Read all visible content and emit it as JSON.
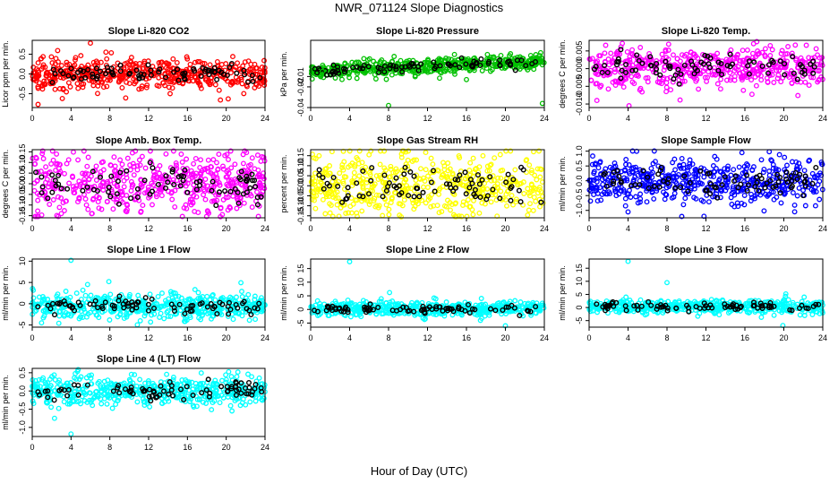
{
  "figure": {
    "title": "NWR_071124  Slope Diagnostics",
    "xlabel": "Hour of Day (UTC)"
  },
  "colors": {
    "red": "#ff0000",
    "green": "#00c000",
    "magenta": "#ff00ff",
    "yellow": "#ffff00",
    "blue": "#0000ff",
    "cyan": "#00ffff",
    "black": "#000000"
  },
  "chart_data": [
    {
      "type": "scatter",
      "title": "Slope Li-820 CO2",
      "ylabel": "Licor ppm per min.",
      "xlim": [
        0,
        24
      ],
      "ylim": [
        -0.85,
        0.85
      ],
      "x_ticks": [
        0,
        4,
        8,
        12,
        16,
        20,
        24
      ],
      "y_ticks": [
        -0.5,
        0.0,
        0.5
      ],
      "y_tick_labels": [
        "-0.5",
        "0.0",
        "0.5"
      ],
      "color": "#ff0000",
      "spread": 0.18,
      "bias": 0.0,
      "outliers": [
        [
          6.0,
          0.78
        ],
        [
          0.6,
          -0.77
        ],
        [
          3.1,
          -0.62
        ],
        [
          7.6,
          0.55
        ],
        [
          19.4,
          -0.66
        ]
      ]
    },
    {
      "type": "scatter",
      "title": "Slope Li-820 Pressure",
      "ylabel": "kPa per min.",
      "xlim": [
        0,
        24
      ],
      "ylim": [
        -0.04,
        0.025
      ],
      "x_ticks": [
        0,
        4,
        8,
        12,
        16,
        20,
        24
      ],
      "y_ticks": [
        -0.04,
        -0.02,
        -0.01
      ],
      "y_tick_labels": [
        "-0.04",
        "-0.02",
        "-0.01"
      ],
      "color": "#00c000",
      "spread": 0.004,
      "bias": 0.0,
      "trend": 0.0004,
      "outliers": [
        [
          8.0,
          -0.038
        ],
        [
          23.8,
          -0.036
        ],
        [
          16.0,
          -0.013
        ],
        [
          1.2,
          -0.005
        ]
      ]
    },
    {
      "type": "scatter",
      "title": "Slope Li-820 Temp.",
      "ylabel": "degrees C per min.",
      "xlim": [
        0,
        24
      ],
      "ylim": [
        -0.011,
        0.008
      ],
      "x_ticks": [
        0,
        4,
        8,
        12,
        16,
        20,
        24
      ],
      "y_ticks": [
        -0.01,
        -0.005,
        0.0,
        0.005
      ],
      "y_tick_labels": [
        "-0.010",
        "-0.005",
        "0.000",
        "0.005"
      ],
      "color": "#ff00ff",
      "spread": 0.0028,
      "bias": 0.0004,
      "outliers": [
        [
          4.1,
          -0.0105
        ],
        [
          18.6,
          0.0065
        ],
        [
          0.8,
          -0.009
        ]
      ]
    },
    {
      "type": "scatter",
      "title": "Slope Amb. Box Temp.",
      "ylabel": "degrees C per min.",
      "xlim": [
        0,
        24
      ],
      "ylim": [
        -0.16,
        0.16
      ],
      "x_ticks": [
        0,
        4,
        8,
        12,
        16,
        20,
        24
      ],
      "y_ticks": [
        -0.15,
        -0.1,
        -0.05,
        0.0,
        0.05,
        0.1,
        0.15
      ],
      "y_tick_labels": [
        "-0.15",
        "-0.10",
        "-0.05",
        "0.00",
        "0.05",
        "0.10",
        "0.15"
      ],
      "color": "#ff00ff",
      "spread": 0.07,
      "bias": 0.0,
      "outliers": [
        [
          19.4,
          -0.155
        ],
        [
          3.0,
          -0.14
        ]
      ]
    },
    {
      "type": "scatter",
      "title": "Slope Gas Stream RH",
      "ylabel": "percent per min.",
      "xlim": [
        0,
        24
      ],
      "ylim": [
        -0.16,
        0.18
      ],
      "x_ticks": [
        0,
        4,
        8,
        12,
        16,
        20,
        24
      ],
      "y_ticks": [
        -0.15,
        -0.1,
        -0.05,
        0.0,
        0.05,
        0.1,
        0.15
      ],
      "y_tick_labels": [
        "-0.15",
        "-0.10",
        "-0.05",
        "0.00",
        "0.05",
        "0.10",
        "0.15"
      ],
      "color": "#ffff00",
      "spread": 0.08,
      "bias": 0.0,
      "outliers": [
        [
          9.3,
          -0.155
        ],
        [
          2.2,
          0.17
        ]
      ]
    },
    {
      "type": "scatter",
      "title": "Slope Sample Flow",
      "ylabel": "ml/min per min.",
      "xlim": [
        0,
        24
      ],
      "ylim": [
        -1.25,
        1.05
      ],
      "x_ticks": [
        0,
        4,
        8,
        12,
        16,
        20,
        24
      ],
      "y_ticks": [
        -1.0,
        -0.5,
        0.0,
        0.5,
        1.0
      ],
      "y_tick_labels": [
        "-1.0",
        "-0.5",
        "0.0",
        "0.5",
        "1.0"
      ],
      "color": "#0000ff",
      "spread": 0.38,
      "bias": 0.0,
      "outliers": [
        [
          4.0,
          -1.05
        ],
        [
          11.8,
          -1.2
        ],
        [
          15.7,
          0.95
        ],
        [
          18.5,
          0.98
        ]
      ]
    },
    {
      "type": "scatter",
      "title": "Slope Line 1 Flow",
      "ylabel": "ml/min per min.",
      "xlim": [
        0,
        24
      ],
      "ylim": [
        -5.5,
        10.5
      ],
      "x_ticks": [
        0,
        4,
        8,
        12,
        16,
        20,
        24
      ],
      "y_ticks": [
        -5,
        0,
        5,
        10
      ],
      "y_tick_labels": [
        "-5",
        "0",
        "5",
        "10"
      ],
      "color": "#00ffff",
      "spread": 1.4,
      "bias": -0.6,
      "outliers": [
        [
          4.0,
          10.2
        ],
        [
          7.9,
          5.2
        ],
        [
          12.2,
          -4.3
        ]
      ]
    },
    {
      "type": "scatter",
      "title": "Slope Line 2 Flow",
      "ylabel": "ml/min per min.",
      "xlim": [
        0,
        24
      ],
      "ylim": [
        -6.5,
        18.5
      ],
      "x_ticks": [
        0,
        4,
        8,
        12,
        16,
        20,
        24
      ],
      "y_ticks": [
        -5,
        0,
        5,
        10,
        15
      ],
      "y_tick_labels": [
        "-5",
        "0",
        "5",
        "10",
        "15"
      ],
      "color": "#00ffff",
      "spread": 1.3,
      "bias": 0.3,
      "outliers": [
        [
          4.0,
          17.5
        ],
        [
          8.1,
          6.2
        ],
        [
          20.0,
          -6.0
        ]
      ]
    },
    {
      "type": "scatter",
      "title": "Slope Line 3 Flow",
      "ylabel": "ml/min per min.",
      "xlim": [
        0,
        24
      ],
      "ylim": [
        -7.5,
        18.5
      ],
      "x_ticks": [
        0,
        4,
        8,
        12,
        16,
        20,
        24
      ],
      "y_ticks": [
        -5,
        0,
        5,
        10,
        15
      ],
      "y_tick_labels": [
        "-5",
        "0",
        "5",
        "10",
        "15"
      ],
      "color": "#00ffff",
      "spread": 1.3,
      "bias": 0.3,
      "outliers": [
        [
          4.0,
          17.6
        ],
        [
          8.0,
          9.5
        ],
        [
          20.2,
          5.2
        ],
        [
          19.9,
          -6.9
        ]
      ]
    },
    {
      "type": "scatter",
      "title": "Slope Line 4 (LT) Flow",
      "ylabel": "ml/min per min.",
      "xlim": [
        0,
        24
      ],
      "ylim": [
        -1.25,
        0.62
      ],
      "x_ticks": [
        0,
        4,
        8,
        12,
        16,
        20,
        24
      ],
      "y_ticks": [
        -1.0,
        -0.5,
        0.0,
        0.5
      ],
      "y_tick_labels": [
        "-1.0",
        "-0.5",
        "0.0",
        "0.5"
      ],
      "color": "#00ffff",
      "spread": 0.2,
      "bias": 0.0,
      "outliers": [
        [
          4.0,
          -1.18
        ],
        [
          2.3,
          -0.75
        ],
        [
          21.2,
          0.52
        ]
      ]
    }
  ]
}
